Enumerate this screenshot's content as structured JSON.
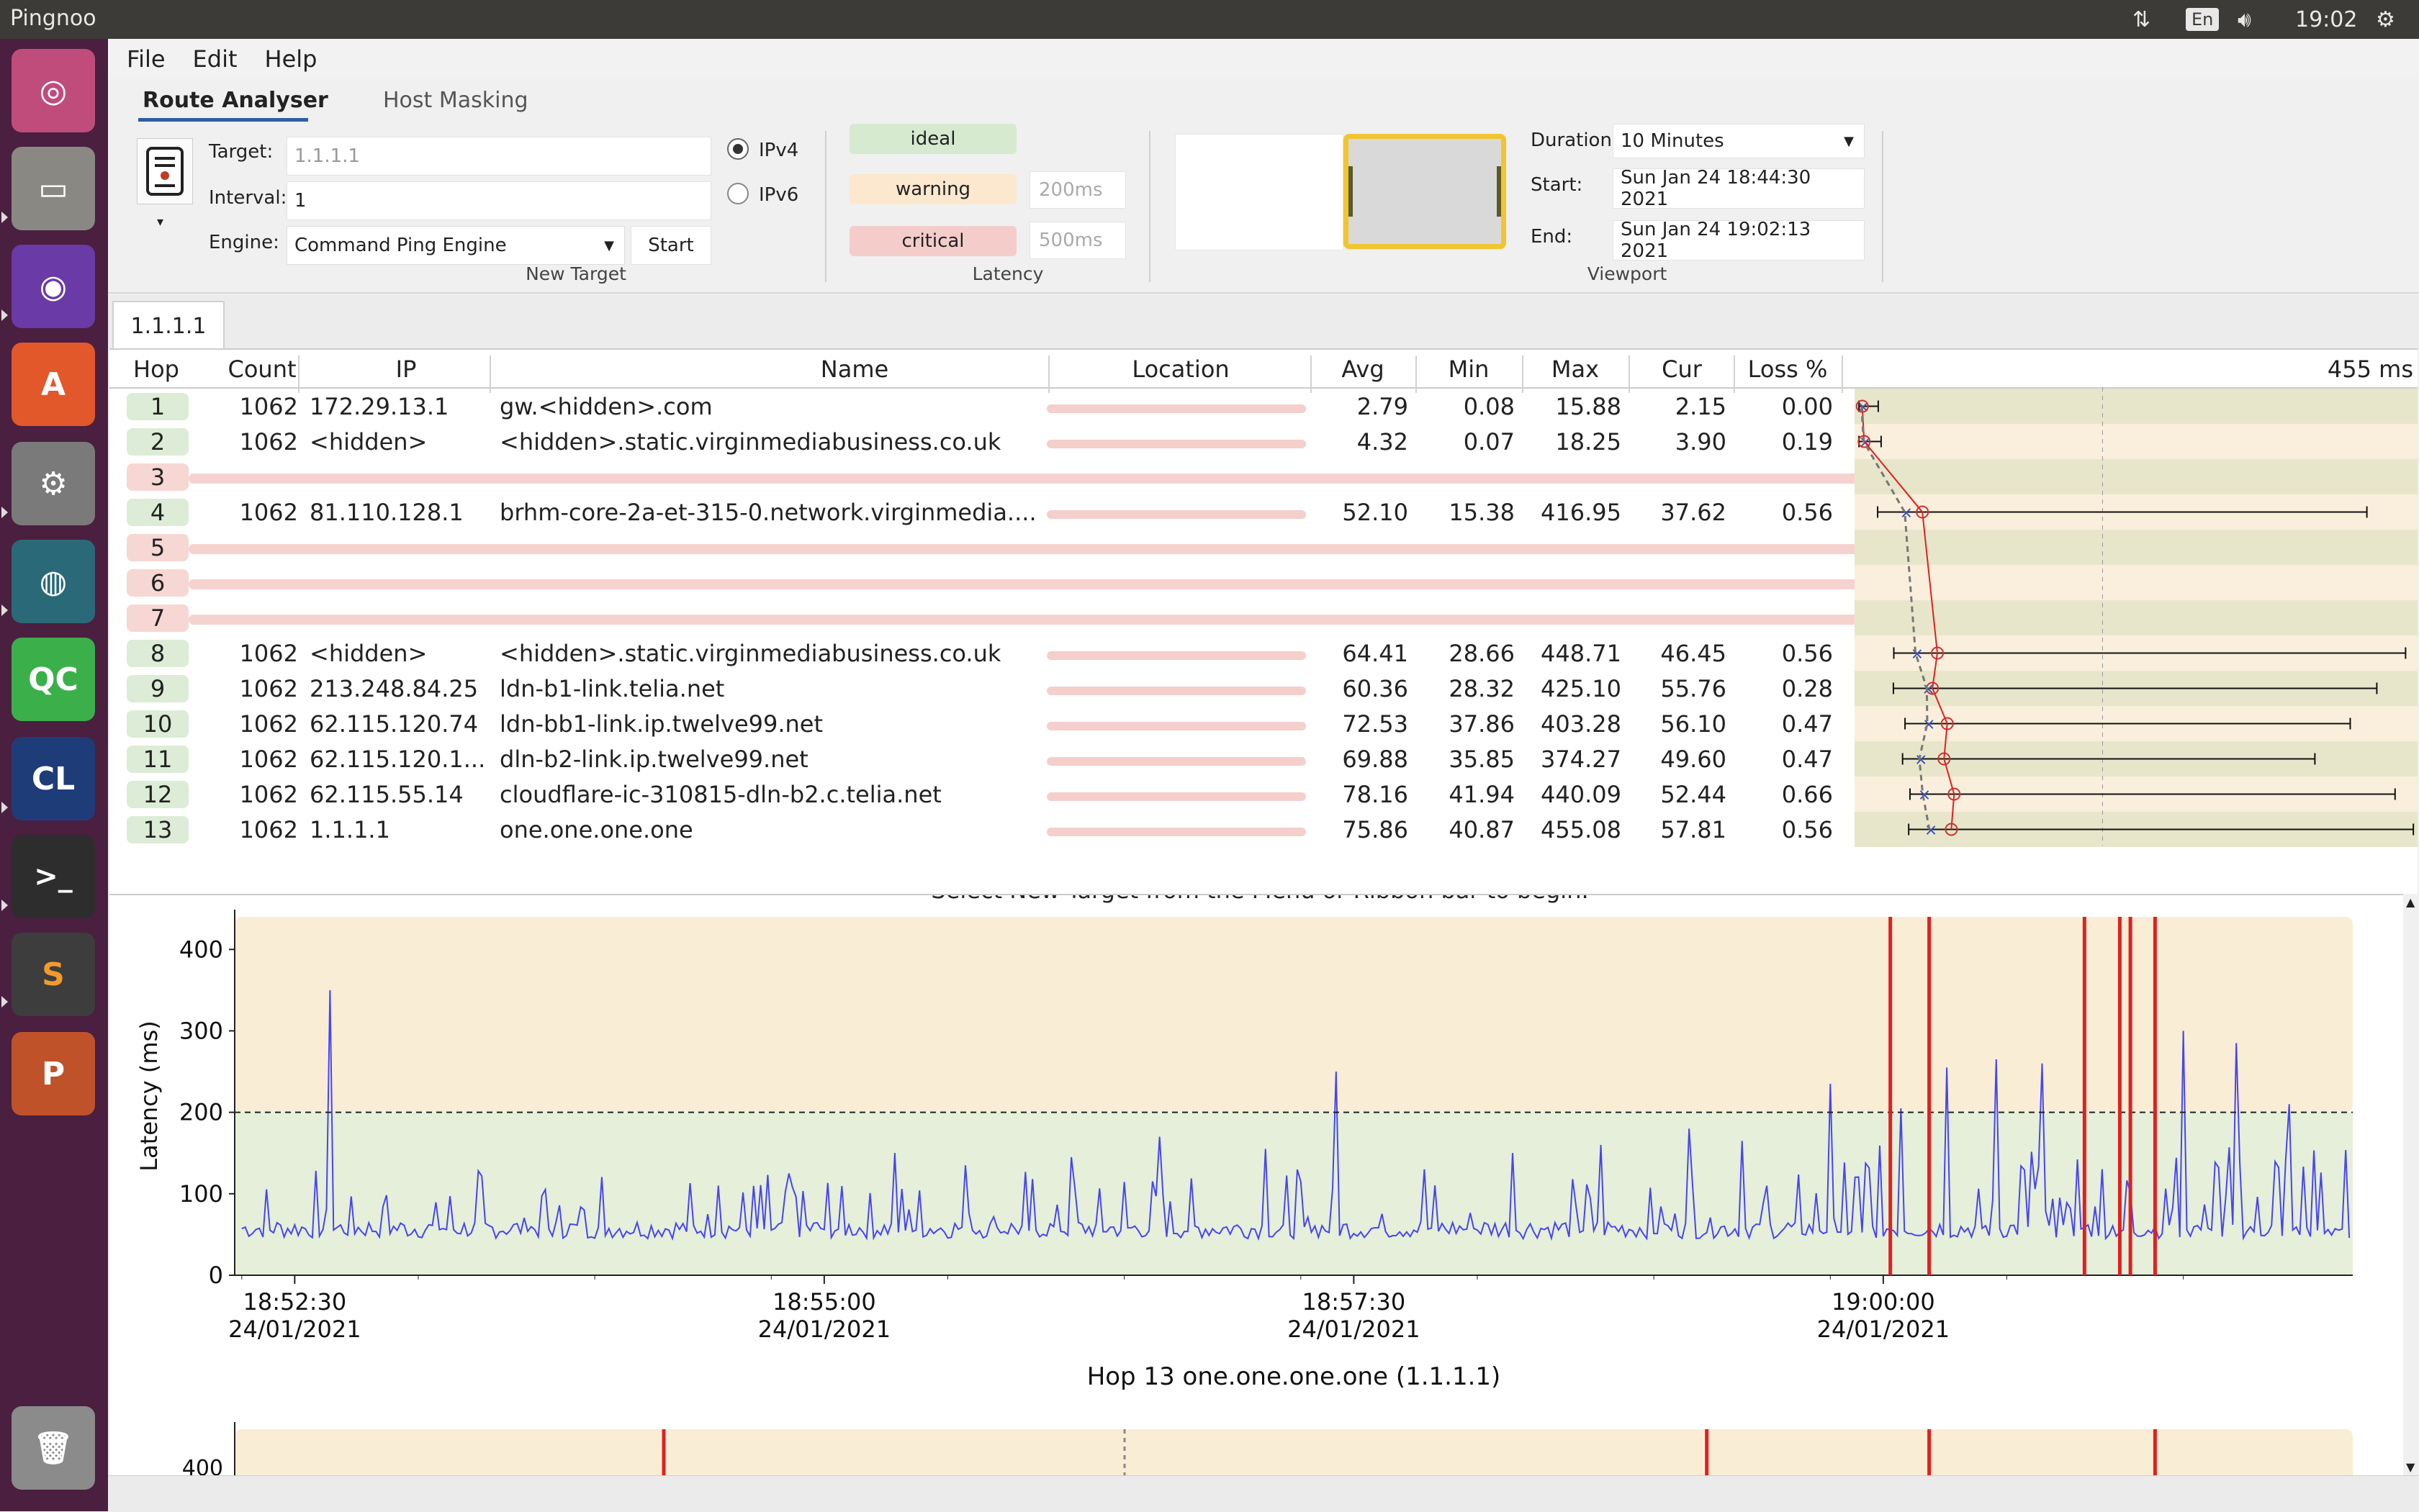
{
  "system": {
    "app_title": "Pingnoo",
    "keyboard_layout": "En",
    "clock": "19:02"
  },
  "menu": {
    "file": "File",
    "edit": "Edit",
    "help": "Help"
  },
  "ribbon": {
    "tabs": [
      "Route Analyser",
      "Host Masking"
    ],
    "target_label": "Target:",
    "target_placeholder": "1.1.1.1",
    "interval_label": "Interval:",
    "interval_value": "1",
    "engine_label": "Engine:",
    "engine_value": "Command Ping Engine",
    "start_button": "Start",
    "ipv4": "IPv4",
    "ipv6": "IPv6",
    "new_target_group": "New Target",
    "latency": {
      "ideal": "ideal",
      "warning": "warning",
      "critical": "critical",
      "warning_ms": "200ms",
      "critical_ms": "500ms",
      "group": "Latency"
    },
    "viewport": {
      "duration_label": "Duration:",
      "duration_value": "10 Minutes",
      "start_label": "Start:",
      "start_value": "Sun Jan 24 18:44:30 2021",
      "end_label": "End:",
      "end_value": "Sun Jan 24 19:02:13 2021",
      "group": "Viewport"
    },
    "colors": {
      "ideal": "#d6ead0",
      "warning": "#fbe8cf",
      "critical": "#f4cdcb"
    }
  },
  "host_tab": "1.1.1.1",
  "table": {
    "headers": [
      "Hop",
      "Count",
      "IP",
      "Name",
      "Location",
      "Avg",
      "Min",
      "Max",
      "Cur",
      "Loss %"
    ],
    "graph_max_label": "455 ms",
    "rows": [
      {
        "hop": "1",
        "count": "1062",
        "ip": "172.29.13.1",
        "name": "gw.<hidden>.com",
        "avg": "2.79",
        "min": "0.08",
        "max": "15.88",
        "cur": "2.15",
        "loss": "0.00"
      },
      {
        "hop": "2",
        "count": "1062",
        "ip": "<hidden>",
        "name": "<hidden>.static.virginmediabusiness.co.uk",
        "avg": "4.32",
        "min": "0.07",
        "max": "18.25",
        "cur": "3.90",
        "loss": "0.19"
      },
      {
        "hop": "3",
        "timeout": true
      },
      {
        "hop": "4",
        "count": "1062",
        "ip": "81.110.128.1",
        "name": "brhm-core-2a-et-315-0.network.virginmedia....",
        "avg": "52.10",
        "min": "15.38",
        "max": "416.95",
        "cur": "37.62",
        "loss": "0.56"
      },
      {
        "hop": "5",
        "timeout": true
      },
      {
        "hop": "6",
        "timeout": true
      },
      {
        "hop": "7",
        "timeout": true
      },
      {
        "hop": "8",
        "count": "1062",
        "ip": "<hidden>",
        "name": "<hidden>.static.virginmediabusiness.co.uk",
        "avg": "64.41",
        "min": "28.66",
        "max": "448.71",
        "cur": "46.45",
        "loss": "0.56"
      },
      {
        "hop": "9",
        "count": "1062",
        "ip": "213.248.84.25",
        "name": "ldn-b1-link.telia.net",
        "avg": "60.36",
        "min": "28.32",
        "max": "425.10",
        "cur": "55.76",
        "loss": "0.28"
      },
      {
        "hop": "10",
        "count": "1062",
        "ip": "62.115.120.74",
        "name": "ldn-bb1-link.ip.twelve99.net",
        "avg": "72.53",
        "min": "37.86",
        "max": "403.28",
        "cur": "56.10",
        "loss": "0.47"
      },
      {
        "hop": "11",
        "count": "1062",
        "ip": "62.115.120.1...",
        "name": "dln-b2-link.ip.twelve99.net",
        "avg": "69.88",
        "min": "35.85",
        "max": "374.27",
        "cur": "49.60",
        "loss": "0.47"
      },
      {
        "hop": "12",
        "count": "1062",
        "ip": "62.115.55.14",
        "name": "cloudflare-ic-310815-dln-b2.c.telia.net",
        "avg": "78.16",
        "min": "41.94",
        "max": "440.09",
        "cur": "52.44",
        "loss": "0.66"
      },
      {
        "hop": "13",
        "count": "1062",
        "ip": "1.1.1.1",
        "name": "one.one.one.one",
        "avg": "75.86",
        "min": "40.87",
        "max": "455.08",
        "cur": "57.81",
        "loss": "0.56"
      }
    ]
  },
  "plot": {
    "cut_banner": "Select New Target from the Menu or Ribbon bar to begin.",
    "ylabel": "Latency (ms)",
    "caption": "Hop 13 one.one.one.one (1.1.1.1)",
    "second_plot_ytick": "400"
  },
  "chart_data": {
    "type": "line",
    "title": "Hop 13 one.one.one.one (1.1.1.1)",
    "ylabel": "Latency (ms)",
    "ylim": [
      0,
      440
    ],
    "yticks": [
      0,
      100,
      200,
      300,
      400
    ],
    "xticks": [
      {
        "time": "18:52:30",
        "date": "24/01/2021",
        "t": 0
      },
      {
        "time": "18:55:00",
        "date": "24/01/2021",
        "t": 150
      },
      {
        "time": "18:57:30",
        "date": "24/01/2021",
        "t": 300
      },
      {
        "time": "19:00:00",
        "date": "24/01/2021",
        "t": 450
      }
    ],
    "xlim_seconds": [
      -17,
      583
    ],
    "warning_threshold": 200,
    "loss_markers_seconds": [
      452,
      463,
      507,
      517,
      520,
      527
    ],
    "series_color": "#4646f0",
    "spikes": [
      [
        10,
        350
      ],
      [
        120,
        110
      ],
      [
        140,
        125
      ],
      [
        170,
        150
      ],
      [
        190,
        135
      ],
      [
        220,
        145
      ],
      [
        245,
        170
      ],
      [
        275,
        155
      ],
      [
        295,
        250
      ],
      [
        320,
        130
      ],
      [
        345,
        150
      ],
      [
        370,
        160
      ],
      [
        395,
        180
      ],
      [
        410,
        165
      ],
      [
        435,
        235
      ],
      [
        455,
        205
      ],
      [
        468,
        255
      ],
      [
        482,
        265
      ],
      [
        495,
        260
      ],
      [
        535,
        300
      ],
      [
        550,
        285
      ],
      [
        565,
        210
      ]
    ]
  }
}
